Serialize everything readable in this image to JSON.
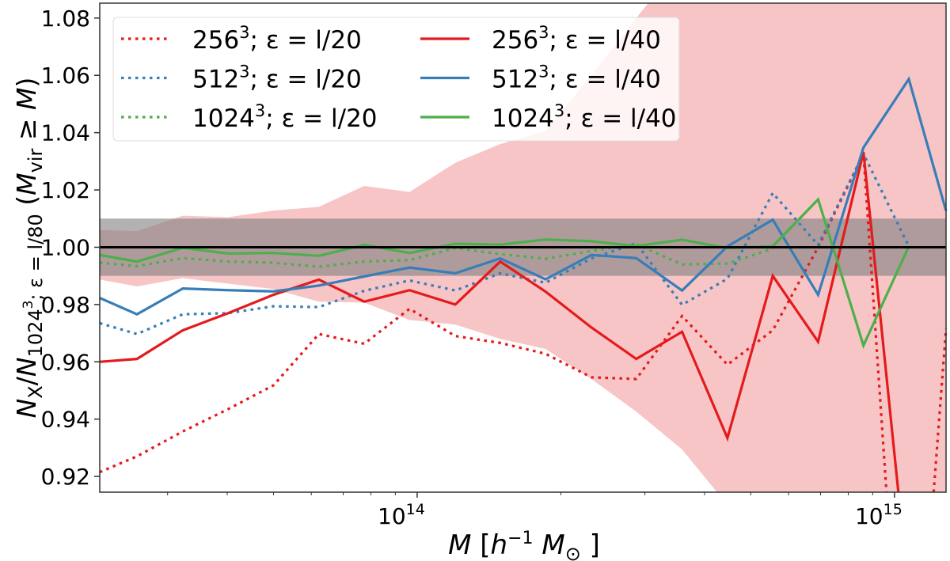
{
  "chart_data": {
    "type": "line",
    "xscale": "log",
    "x_log10": [
      13.335,
      13.413,
      13.509,
      13.604,
      13.699,
      13.794,
      13.889,
      13.984,
      14.08,
      14.174,
      14.269,
      14.365,
      14.459,
      14.555,
      14.65,
      14.745,
      14.84,
      14.935,
      15.03,
      15.108
    ],
    "xlim_log10": [
      13.335,
      15.108
    ],
    "ylim": [
      0.9145,
      1.0852
    ],
    "xticks": [
      {
        "base": "10",
        "exp": "14",
        "log10": 14
      },
      {
        "base": "10",
        "exp": "15",
        "log10": 15
      }
    ],
    "yticks": [
      "0.92",
      "0.94",
      "0.96",
      "0.98",
      "1.00",
      "1.02",
      "1.04",
      "1.06",
      "1.08"
    ],
    "xlabel_parts": [
      {
        "t": "M",
        "style": "italic"
      },
      {
        "t": " [",
        "style": "normal"
      },
      {
        "t": "h",
        "style": "italic"
      },
      {
        "t": "−1",
        "style": "sup"
      },
      {
        "t": " M",
        "style": "italic"
      },
      {
        "t": "⊙",
        "style": "sub"
      },
      {
        "t": " ]",
        "style": "normal"
      }
    ],
    "ylabel_parts": [
      {
        "t": "N",
        "style": "italic"
      },
      {
        "t": "X",
        "style": "sub"
      },
      {
        "t": "/",
        "style": "normal"
      },
      {
        "t": "N",
        "style": "italic"
      },
      {
        "t": "1024",
        "style": "sub"
      },
      {
        "t": "3",
        "style": "subsup"
      },
      {
        "t": "; ε = l/80",
        "style": "sub2"
      },
      {
        "t": " (",
        "style": "normal"
      },
      {
        "t": "M",
        "style": "italic"
      },
      {
        "t": "vir",
        "style": "sub"
      },
      {
        "t": " ≥ ",
        "style": "normal"
      },
      {
        "t": "M",
        "style": "italic"
      },
      {
        "t": ")",
        "style": "normal"
      }
    ],
    "reference_line": 1.0,
    "gray_band": [
      0.99,
      1.01
    ],
    "shaded_band": {
      "color": "#f7c5c6",
      "upper": [
        1.006,
        1.0056,
        1.011,
        1.0105,
        1.0128,
        1.0141,
        1.0214,
        1.0193,
        1.0295,
        1.036,
        1.0406,
        1.06,
        1.08,
        1.1,
        1.1,
        1.1,
        1.1,
        1.1,
        1.1,
        1.1
      ],
      "lower": [
        0.9887,
        0.9863,
        0.9892,
        0.9873,
        0.9854,
        0.981,
        0.9807,
        0.9746,
        0.973,
        0.968,
        0.9645,
        0.954,
        0.9426,
        0.9294,
        0.91,
        0.85,
        0.85,
        0.85,
        0.85,
        0.85
      ]
    },
    "series": [
      {
        "name": "256^3; ε = l/20",
        "label": {
          "base": "256",
          "sup": "3",
          "rest": "; ε = l/20"
        },
        "color": "#e41a1c",
        "dash": "dotted",
        "values": [
          0.9215,
          0.927,
          0.9357,
          0.9435,
          0.9518,
          0.9697,
          0.9663,
          0.9785,
          0.969,
          0.9666,
          0.9628,
          0.9546,
          0.954,
          0.976,
          0.959,
          0.971,
          1.0,
          1.0326,
          0.8,
          0.9716
        ]
      },
      {
        "name": "512^3; ε = l/20",
        "label": {
          "base": "512",
          "sup": "3",
          "rest": "; ε = l/20"
        },
        "color": "#377eb8",
        "dash": "dotted",
        "values": [
          0.9735,
          0.9697,
          0.9766,
          0.977,
          0.9794,
          0.9791,
          0.9848,
          0.9884,
          0.9849,
          0.9909,
          0.9876,
          0.9961,
          1.0014,
          0.9799,
          0.989,
          1.0189,
          1.0008,
          1.0326,
          1.0003,
          null
        ]
      },
      {
        "name": "1024^3; ε = l/20",
        "label": {
          "base": "1024",
          "sup": "3",
          "rest": "; ε = l/20"
        },
        "color": "#4daf4a",
        "dash": "dotted",
        "values": [
          0.9946,
          0.9934,
          0.9962,
          0.995,
          0.9946,
          0.9932,
          0.995,
          0.9955,
          0.9997,
          0.9976,
          0.996,
          0.9987,
          1.001,
          0.994,
          0.9943,
          0.9995,
          null,
          null,
          null,
          null
        ]
      },
      {
        "name": "256^3; ε = l/40",
        "label": {
          "base": "256",
          "sup": "3",
          "rest": "; ε = l/40"
        },
        "color": "#e41a1c",
        "dash": "solid",
        "values": [
          0.96,
          0.961,
          0.971,
          0.977,
          0.9834,
          0.9887,
          0.981,
          0.985,
          0.98,
          0.995,
          0.9845,
          0.972,
          0.961,
          0.9705,
          0.9334,
          0.99,
          0.967,
          1.0332,
          0.879,
          null
        ]
      },
      {
        "name": "512^3; ε = l/40",
        "label": {
          "base": "512",
          "sup": "3",
          "rest": "; ε = l/40"
        },
        "color": "#377eb8",
        "dash": "solid",
        "values": [
          0.9823,
          0.9766,
          0.9856,
          0.985,
          0.9846,
          0.9866,
          0.9898,
          0.9929,
          0.9909,
          0.9961,
          0.9888,
          0.9973,
          0.9962,
          0.9849,
          1.0003,
          1.0096,
          0.9834,
          1.0348,
          1.0587,
          1.0127
        ]
      },
      {
        "name": "1024^3; ε = l/40",
        "label": {
          "base": "1024",
          "sup": "3",
          "rest": "; ε = l/40"
        },
        "color": "#4daf4a",
        "dash": "solid",
        "values": [
          0.9973,
          0.995,
          0.9998,
          0.9978,
          0.998,
          0.997,
          1.0008,
          0.998,
          1.0012,
          1.0009,
          1.0027,
          1.0021,
          1.0004,
          1.0026,
          0.9997,
          1.0003,
          1.0167,
          0.9657,
          1.0003,
          null
        ]
      }
    ],
    "legend_placement": "top-left",
    "grid": false
  }
}
